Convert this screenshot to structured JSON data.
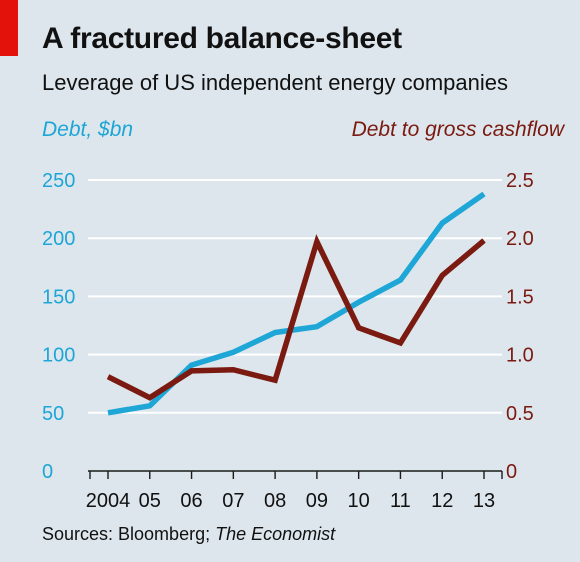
{
  "header": {
    "title": "A fractured balance-sheet",
    "subtitle": "Leverage of US independent energy companies"
  },
  "footer": {
    "source_prefix": "Sources: Bloomberg; ",
    "source_italic": "The Economist"
  },
  "colors": {
    "background": "#dde6ec",
    "debt_series": "#1ea6d6",
    "ratio_series": "#7a1a10",
    "brand_tag": "#e3120b",
    "grid": "#ffffff",
    "axis": "#1a1a1a"
  },
  "chart_data": {
    "type": "line",
    "x": [
      "2004",
      "05",
      "06",
      "07",
      "08",
      "09",
      "10",
      "11",
      "12",
      "13"
    ],
    "left_axis": {
      "label": "Debt, $bn",
      "ylim": [
        0,
        250
      ],
      "ticks": [
        "0",
        "50",
        "100",
        "150",
        "200",
        "250"
      ],
      "tick_values": [
        0,
        50,
        100,
        150,
        200,
        250
      ]
    },
    "right_axis": {
      "label": "Debt to gross cashflow",
      "ylim": [
        0,
        2.5
      ],
      "ticks": [
        "0",
        "0.5",
        "1.0",
        "1.5",
        "2.0",
        "2.5"
      ],
      "tick_values": [
        0,
        0.5,
        1.0,
        1.5,
        2.0,
        2.5
      ]
    },
    "series": [
      {
        "name": "Debt, $bn",
        "axis": "left",
        "values": [
          50,
          56,
          91,
          102,
          119,
          124,
          145,
          164,
          213,
          238
        ]
      },
      {
        "name": "Debt to gross cashflow",
        "axis": "right",
        "values": [
          0.81,
          0.63,
          0.86,
          0.87,
          0.78,
          1.97,
          1.23,
          1.1,
          1.68,
          1.98
        ]
      }
    ],
    "grid": true
  }
}
